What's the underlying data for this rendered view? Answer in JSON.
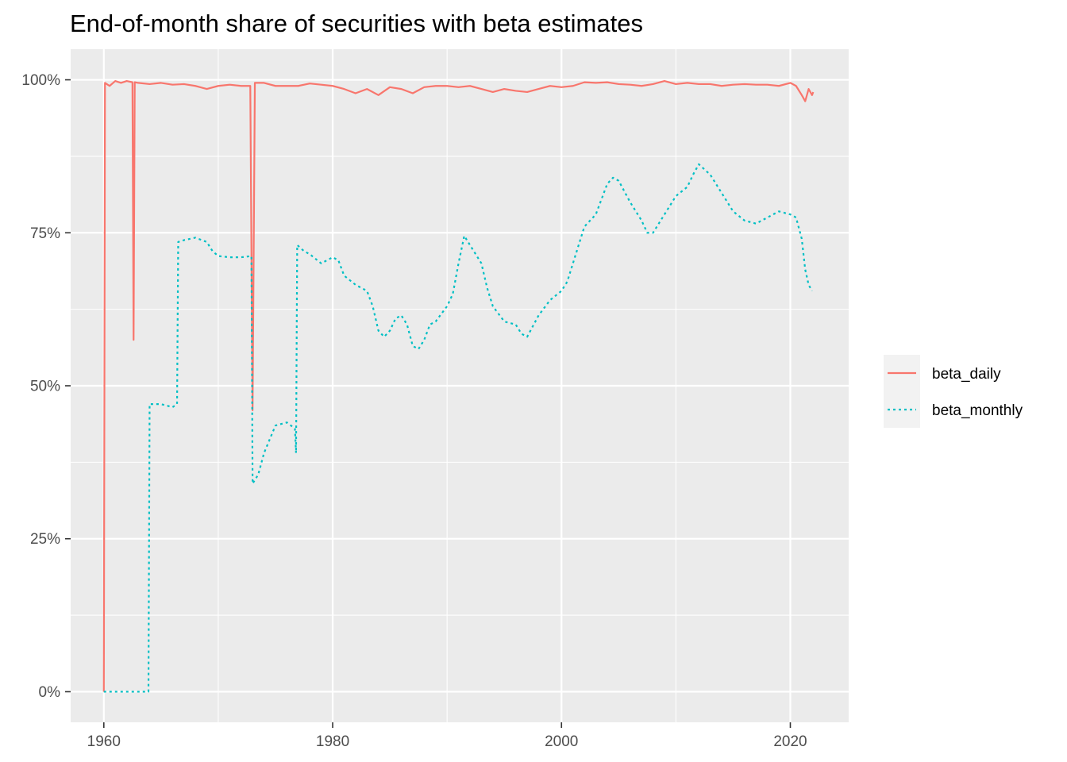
{
  "chart_data": {
    "type": "line",
    "title": "End-of-month share of securities with beta estimates",
    "xlabel": "",
    "ylabel": "",
    "xlim": [
      1957.1,
      2025.1
    ],
    "ylim": [
      -0.05,
      1.05
    ],
    "x_ticks": [
      1960,
      1980,
      2000,
      2020
    ],
    "x_tick_labels": [
      "1960",
      "1980",
      "2000",
      "2020"
    ],
    "y_ticks": [
      0,
      0.25,
      0.5,
      0.75,
      1.0
    ],
    "y_tick_labels": [
      "0%",
      "25%",
      "50%",
      "75%",
      "100%"
    ],
    "grid": true,
    "legend_position": "right",
    "series": [
      {
        "name": "beta_daily",
        "color": "#F8766D",
        "linetype": "solid",
        "points": [
          [
            1960.0,
            0.0
          ],
          [
            1960.1,
            0.995
          ],
          [
            1960.5,
            0.99
          ],
          [
            1961.0,
            0.998
          ],
          [
            1961.5,
            0.995
          ],
          [
            1962.0,
            0.998
          ],
          [
            1962.5,
            0.996
          ],
          [
            1962.6,
            0.575
          ],
          [
            1962.7,
            0.996
          ],
          [
            1963.0,
            0.995
          ],
          [
            1964.0,
            0.993
          ],
          [
            1965.0,
            0.995
          ],
          [
            1966.0,
            0.992
          ],
          [
            1967.0,
            0.993
          ],
          [
            1968.0,
            0.99
          ],
          [
            1969.0,
            0.985
          ],
          [
            1970.0,
            0.99
          ],
          [
            1971.0,
            0.992
          ],
          [
            1972.0,
            0.99
          ],
          [
            1972.8,
            0.99
          ],
          [
            1973.0,
            0.46
          ],
          [
            1973.2,
            0.995
          ],
          [
            1974.0,
            0.995
          ],
          [
            1975.0,
            0.99
          ],
          [
            1976.0,
            0.99
          ],
          [
            1977.0,
            0.99
          ],
          [
            1978.0,
            0.994
          ],
          [
            1979.0,
            0.992
          ],
          [
            1980.0,
            0.99
          ],
          [
            1981.0,
            0.985
          ],
          [
            1982.0,
            0.978
          ],
          [
            1983.0,
            0.985
          ],
          [
            1984.0,
            0.975
          ],
          [
            1985.0,
            0.988
          ],
          [
            1986.0,
            0.985
          ],
          [
            1987.0,
            0.978
          ],
          [
            1988.0,
            0.988
          ],
          [
            1989.0,
            0.99
          ],
          [
            1990.0,
            0.99
          ],
          [
            1991.0,
            0.988
          ],
          [
            1992.0,
            0.99
          ],
          [
            1993.0,
            0.985
          ],
          [
            1994.0,
            0.98
          ],
          [
            1995.0,
            0.985
          ],
          [
            1996.0,
            0.982
          ],
          [
            1997.0,
            0.98
          ],
          [
            1998.0,
            0.985
          ],
          [
            1999.0,
            0.99
          ],
          [
            2000.0,
            0.988
          ],
          [
            2001.0,
            0.99
          ],
          [
            2002.0,
            0.996
          ],
          [
            2003.0,
            0.995
          ],
          [
            2004.0,
            0.996
          ],
          [
            2005.0,
            0.993
          ],
          [
            2006.0,
            0.992
          ],
          [
            2007.0,
            0.99
          ],
          [
            2008.0,
            0.993
          ],
          [
            2009.0,
            0.998
          ],
          [
            2010.0,
            0.993
          ],
          [
            2011.0,
            0.995
          ],
          [
            2012.0,
            0.993
          ],
          [
            2013.0,
            0.993
          ],
          [
            2014.0,
            0.99
          ],
          [
            2015.0,
            0.992
          ],
          [
            2016.0,
            0.993
          ],
          [
            2017.0,
            0.992
          ],
          [
            2018.0,
            0.992
          ],
          [
            2019.0,
            0.99
          ],
          [
            2020.0,
            0.995
          ],
          [
            2020.5,
            0.99
          ],
          [
            2021.0,
            0.975
          ],
          [
            2021.3,
            0.965
          ],
          [
            2021.6,
            0.985
          ],
          [
            2021.9,
            0.975
          ],
          [
            2022.0,
            0.98
          ]
        ]
      },
      {
        "name": "beta_monthly",
        "color": "#00BFC4",
        "linetype": "dotted",
        "points": [
          [
            1960.0,
            0.0
          ],
          [
            1963.9,
            0.0
          ],
          [
            1964.0,
            0.47
          ],
          [
            1965.0,
            0.47
          ],
          [
            1966.0,
            0.465
          ],
          [
            1966.4,
            0.47
          ],
          [
            1966.5,
            0.735
          ],
          [
            1967.0,
            0.738
          ],
          [
            1968.0,
            0.742
          ],
          [
            1969.0,
            0.735
          ],
          [
            1969.5,
            0.72
          ],
          [
            1970.0,
            0.712
          ],
          [
            1971.0,
            0.71
          ],
          [
            1972.0,
            0.71
          ],
          [
            1972.9,
            0.712
          ],
          [
            1973.0,
            0.34
          ],
          [
            1973.5,
            0.355
          ],
          [
            1974.0,
            0.39
          ],
          [
            1975.0,
            0.435
          ],
          [
            1976.0,
            0.44
          ],
          [
            1976.7,
            0.43
          ],
          [
            1976.8,
            0.39
          ],
          [
            1976.9,
            0.73
          ],
          [
            1977.5,
            0.72
          ],
          [
            1978.0,
            0.715
          ],
          [
            1979.0,
            0.7
          ],
          [
            1980.0,
            0.71
          ],
          [
            1980.5,
            0.705
          ],
          [
            1981.0,
            0.68
          ],
          [
            1982.0,
            0.665
          ],
          [
            1983.0,
            0.655
          ],
          [
            1983.5,
            0.63
          ],
          [
            1984.0,
            0.59
          ],
          [
            1984.5,
            0.58
          ],
          [
            1985.0,
            0.59
          ],
          [
            1985.5,
            0.61
          ],
          [
            1986.0,
            0.615
          ],
          [
            1986.5,
            0.6
          ],
          [
            1987.0,
            0.565
          ],
          [
            1987.5,
            0.56
          ],
          [
            1988.0,
            0.575
          ],
          [
            1988.5,
            0.6
          ],
          [
            1989.0,
            0.605
          ],
          [
            1990.0,
            0.63
          ],
          [
            1990.5,
            0.65
          ],
          [
            1991.0,
            0.7
          ],
          [
            1991.5,
            0.745
          ],
          [
            1992.0,
            0.73
          ],
          [
            1993.0,
            0.7
          ],
          [
            1993.5,
            0.66
          ],
          [
            1994.0,
            0.63
          ],
          [
            1995.0,
            0.605
          ],
          [
            1996.0,
            0.6
          ],
          [
            1996.5,
            0.585
          ],
          [
            1997.0,
            0.58
          ],
          [
            1998.0,
            0.615
          ],
          [
            1999.0,
            0.64
          ],
          [
            2000.0,
            0.655
          ],
          [
            2000.5,
            0.67
          ],
          [
            2001.0,
            0.7
          ],
          [
            2002.0,
            0.76
          ],
          [
            2003.0,
            0.78
          ],
          [
            2004.0,
            0.83
          ],
          [
            2004.5,
            0.84
          ],
          [
            2005.0,
            0.835
          ],
          [
            2006.0,
            0.8
          ],
          [
            2007.0,
            0.77
          ],
          [
            2007.5,
            0.75
          ],
          [
            2008.0,
            0.75
          ],
          [
            2009.0,
            0.78
          ],
          [
            2010.0,
            0.81
          ],
          [
            2011.0,
            0.825
          ],
          [
            2011.5,
            0.845
          ],
          [
            2012.0,
            0.862
          ],
          [
            2013.0,
            0.845
          ],
          [
            2014.0,
            0.815
          ],
          [
            2015.0,
            0.785
          ],
          [
            2016.0,
            0.77
          ],
          [
            2017.0,
            0.765
          ],
          [
            2018.0,
            0.775
          ],
          [
            2019.0,
            0.785
          ],
          [
            2020.0,
            0.78
          ],
          [
            2020.5,
            0.775
          ],
          [
            2021.0,
            0.74
          ],
          [
            2021.3,
            0.69
          ],
          [
            2021.6,
            0.665
          ],
          [
            2021.9,
            0.655
          ]
        ]
      }
    ]
  }
}
